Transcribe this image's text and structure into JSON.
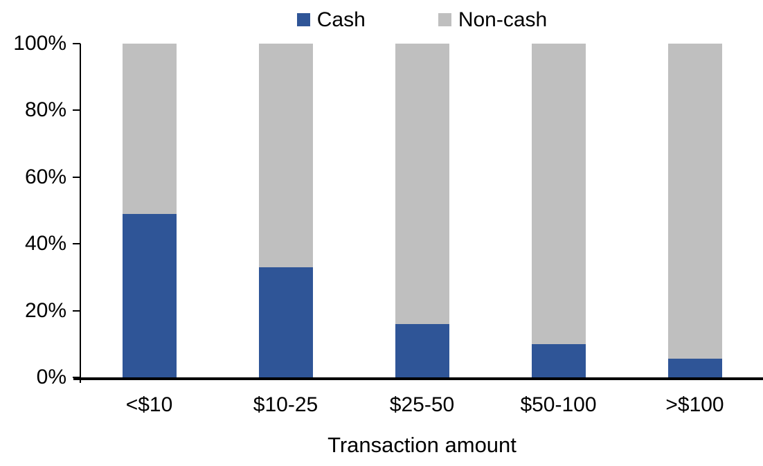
{
  "chart_data": {
    "type": "bar",
    "variant": "stacked-100-percent",
    "title": "",
    "xlabel": "Transaction amount",
    "ylabel": "",
    "ylim": [
      0,
      100
    ],
    "ytick_labels": [
      "0%",
      "20%",
      "40%",
      "60%",
      "80%",
      "100%"
    ],
    "ytick_values": [
      0,
      20,
      40,
      60,
      80,
      100
    ],
    "categories": [
      "<$10",
      "$10-25",
      "$25-50",
      "$50-100",
      ">$100"
    ],
    "series": [
      {
        "name": "Cash",
        "color": "#2F5597",
        "values": [
          49,
          33,
          16,
          10,
          5.5
        ]
      },
      {
        "name": "Non-cash",
        "color": "#BFBFBF",
        "values": [
          51,
          67,
          84,
          90,
          94.5
        ]
      }
    ],
    "legend": {
      "position": "top",
      "items": [
        "Cash",
        "Non-cash"
      ]
    },
    "grid": false
  },
  "colors": {
    "cash": "#2F5597",
    "noncash": "#BFBFBF",
    "axis": "#000000",
    "text": "#000000",
    "background": "#FFFFFF"
  }
}
